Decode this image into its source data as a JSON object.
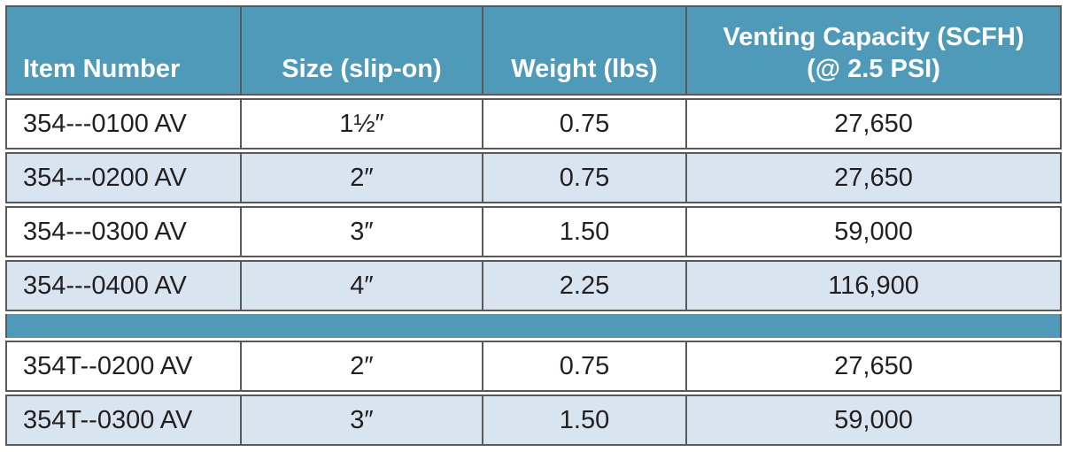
{
  "colors": {
    "header_bg": "#4f9ab8",
    "header_text": "#ffffff",
    "row_bg": "#ffffff",
    "row_alt_bg": "#d8e5f0",
    "separator_bg": "#4f9ab8",
    "border": "#58595b",
    "text": "#231f20"
  },
  "table": {
    "columns": [
      {
        "label": "Item Number"
      },
      {
        "label": "Size (slip-on)"
      },
      {
        "label": "Weight (lbs)"
      },
      {
        "label": "Venting Capacity (SCFH)",
        "label2": "(@ 2.5 PSI)"
      }
    ],
    "groups": [
      {
        "rows": [
          {
            "item": "354---0100 AV",
            "size": "1½″",
            "weight": "0.75",
            "capacity": "27,650"
          },
          {
            "item": "354---0200 AV",
            "size": "2″",
            "weight": "0.75",
            "capacity": "27,650"
          },
          {
            "item": "354---0300 AV",
            "size": "3″",
            "weight": "1.50",
            "capacity": "59,000"
          },
          {
            "item": "354---0400 AV",
            "size": "4″",
            "weight": "2.25",
            "capacity": "116,900"
          }
        ]
      },
      {
        "rows": [
          {
            "item": "354T--0200 AV",
            "size": "2″",
            "weight": "0.75",
            "capacity": "27,650"
          },
          {
            "item": "354T--0300 AV",
            "size": "3″",
            "weight": "1.50",
            "capacity": "59,000"
          }
        ]
      }
    ]
  }
}
